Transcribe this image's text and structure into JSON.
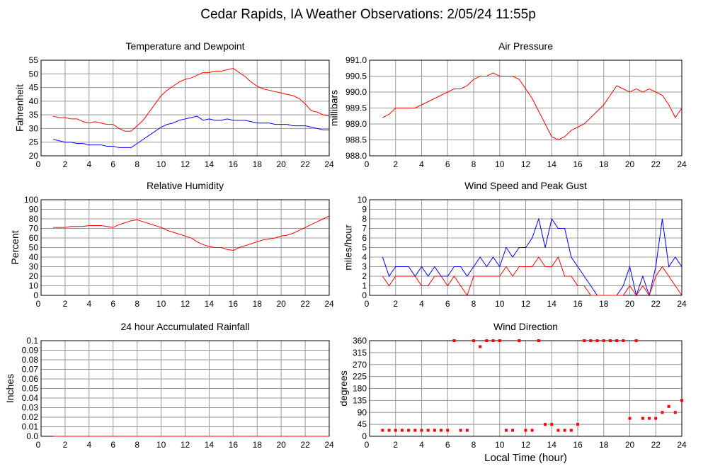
{
  "title": "Cedar Rapids, IA Weather Observations: 2/05/24 11:55p",
  "chart_data": [
    {
      "type": "line",
      "title": "Temperature and Dewpoint",
      "ylabel": "Fahrenheit",
      "grid": true,
      "x": [
        1,
        1.5,
        2,
        2.5,
        3,
        3.5,
        4,
        4.5,
        5,
        5.5,
        6,
        6.5,
        7,
        7.5,
        8,
        8.5,
        9,
        9.5,
        10,
        10.5,
        11,
        11.5,
        12,
        12.5,
        13,
        13.5,
        14,
        14.5,
        15,
        15.5,
        16,
        16.5,
        17,
        17.5,
        18,
        18.5,
        19,
        19.5,
        20,
        20.5,
        21,
        21.5,
        22,
        22.5,
        23,
        23.5,
        24
      ],
      "xlim": [
        0,
        24
      ],
      "xticks": [
        0,
        2,
        4,
        6,
        8,
        10,
        12,
        14,
        16,
        18,
        20,
        22,
        24
      ],
      "ylim": [
        20,
        55
      ],
      "yticks": [
        20,
        25,
        30,
        35,
        40,
        45,
        50,
        55
      ],
      "series": [
        {
          "color": "#ff0000",
          "values": [
            34.5,
            34,
            34,
            33.5,
            33.5,
            32.5,
            32,
            32.5,
            32,
            31.5,
            31.5,
            30,
            29,
            29,
            31,
            33,
            36,
            39,
            42,
            44,
            45.5,
            47,
            48,
            48.5,
            49.5,
            50.5,
            50.5,
            51,
            51,
            51.5,
            52,
            50.5,
            49,
            47,
            45.5,
            44.5,
            44,
            43.5,
            43,
            42.5,
            42,
            41,
            39,
            36.5,
            36,
            35,
            34.5
          ]
        },
        {
          "color": "#0000ff",
          "values": [
            26,
            25.5,
            25,
            25,
            24.5,
            24.5,
            24,
            24,
            24,
            23.5,
            23.5,
            23,
            23,
            23,
            24.5,
            26,
            27.5,
            29,
            30.5,
            31.5,
            32,
            33,
            33.5,
            34,
            34.5,
            33,
            33.5,
            33,
            33,
            33.5,
            33,
            33,
            33,
            32.5,
            32,
            32,
            32,
            31.5,
            31.5,
            31.5,
            31,
            31,
            31,
            30.5,
            30,
            29.5,
            29.5
          ]
        }
      ]
    },
    {
      "type": "line",
      "title": "Air Pressure",
      "ylabel": "millibars",
      "grid": true,
      "x": [
        1,
        1.5,
        2,
        2.5,
        3,
        3.5,
        4,
        4.5,
        5,
        5.5,
        6,
        6.5,
        7,
        7.5,
        8,
        8.5,
        9,
        9.5,
        10,
        10.5,
        11,
        11.5,
        12,
        12.5,
        13,
        13.5,
        14,
        14.5,
        15,
        15.5,
        16,
        16.5,
        17,
        17.5,
        18,
        18.5,
        19,
        19.5,
        20,
        20.5,
        21,
        21.5,
        22,
        22.5,
        23,
        23.5,
        24
      ],
      "xlim": [
        0,
        24
      ],
      "xticks": [
        0,
        2,
        4,
        6,
        8,
        10,
        12,
        14,
        16,
        18,
        20,
        22,
        24
      ],
      "ylim": [
        988,
        991
      ],
      "yticks": [
        {
          "value": 988,
          "label": "988.0"
        },
        988.5,
        {
          "value": 989,
          "label": "989.0"
        },
        989.5,
        {
          "value": 990,
          "label": "990.0"
        },
        990.5,
        {
          "value": 991,
          "label": "991.0"
        }
      ],
      "series": [
        {
          "color": "#ff0000",
          "values": [
            989.2,
            989.3,
            989.5,
            989.5,
            989.5,
            989.5,
            989.6,
            989.7,
            989.8,
            989.9,
            990,
            990.1,
            990.1,
            990.2,
            990.4,
            990.5,
            990.5,
            990.6,
            990.5,
            990.5,
            990.5,
            990.4,
            990.1,
            989.8,
            989.4,
            989,
            988.6,
            988.5,
            988.6,
            988.8,
            988.9,
            989,
            989.2,
            989.4,
            989.6,
            989.9,
            990.2,
            990.1,
            990,
            990.1,
            990,
            990.1,
            990,
            989.9,
            989.6,
            989.2,
            989.5
          ]
        }
      ]
    },
    {
      "type": "line",
      "title": "Relative Humidity",
      "ylabel": "Percent",
      "grid": true,
      "x": [
        1,
        1.5,
        2,
        2.5,
        3,
        3.5,
        4,
        4.5,
        5,
        5.5,
        6,
        6.5,
        7,
        7.5,
        8,
        8.5,
        9,
        9.5,
        10,
        10.5,
        11,
        11.5,
        12,
        12.5,
        13,
        13.5,
        14,
        14.5,
        15,
        15.5,
        16,
        16.5,
        17,
        17.5,
        18,
        18.5,
        19,
        19.5,
        20,
        20.5,
        21,
        21.5,
        22,
        22.5,
        23,
        23.5,
        24
      ],
      "xlim": [
        0,
        24
      ],
      "xticks": [
        0,
        2,
        4,
        6,
        8,
        10,
        12,
        14,
        16,
        18,
        20,
        22,
        24
      ],
      "ylim": [
        0,
        100
      ],
      "yticks": [
        0,
        10,
        20,
        30,
        40,
        50,
        60,
        70,
        80,
        90,
        100
      ],
      "series": [
        {
          "color": "#ff0000",
          "values": [
            71,
            71,
            71,
            72,
            72,
            72,
            73,
            73,
            73,
            72,
            71,
            74,
            76,
            78,
            79,
            77,
            75,
            73,
            71,
            68,
            66,
            64,
            62,
            60,
            56,
            53,
            51,
            50,
            50,
            48,
            47,
            50,
            52,
            54,
            56,
            58,
            59,
            60,
            62,
            63,
            65,
            68,
            71,
            74,
            77,
            80,
            83
          ]
        }
      ]
    },
    {
      "type": "line",
      "title": "Wind Speed and Peak Gust",
      "ylabel": "miles/hour",
      "grid": true,
      "x": [
        1,
        1.5,
        2,
        2.5,
        3,
        3.5,
        4,
        4.5,
        5,
        5.5,
        6,
        6.5,
        7,
        7.5,
        8,
        8.5,
        9,
        9.5,
        10,
        10.5,
        11,
        11.5,
        12,
        12.5,
        13,
        13.5,
        14,
        14.5,
        15,
        15.5,
        16,
        16.5,
        17,
        17.5,
        18,
        18.5,
        19,
        19.5,
        20,
        20.5,
        21,
        21.5,
        22,
        22.5,
        23,
        23.5,
        24
      ],
      "xlim": [
        0,
        24
      ],
      "xticks": [
        0,
        2,
        4,
        6,
        8,
        10,
        12,
        14,
        16,
        18,
        20,
        22,
        24
      ],
      "ylim": [
        0,
        10
      ],
      "yticks": [
        0,
        1,
        2,
        3,
        4,
        5,
        6,
        7,
        8,
        9,
        10
      ],
      "series": [
        {
          "color": "#0000ff",
          "values": [
            4,
            2,
            3,
            3,
            3,
            2,
            3,
            2,
            3,
            2,
            2,
            3,
            3,
            2,
            3,
            4,
            3,
            4,
            3,
            5,
            4,
            5,
            5,
            6,
            8,
            5,
            8,
            7,
            7,
            4,
            3,
            2,
            1,
            0,
            0,
            0,
            0,
            1,
            3,
            0,
            2,
            0,
            3,
            8,
            3,
            4,
            3
          ]
        },
        {
          "color": "#ff0000",
          "values": [
            2,
            1,
            2,
            2,
            2,
            2,
            1,
            1,
            2,
            2,
            1,
            2,
            1,
            0,
            2,
            2,
            2,
            2,
            2,
            3,
            2,
            3,
            3,
            3,
            4,
            3,
            3,
            4,
            2,
            2,
            1,
            1,
            0,
            0,
            0,
            0,
            0,
            0,
            1,
            0,
            1,
            0,
            2,
            3,
            2,
            1,
            0
          ]
        }
      ]
    },
    {
      "type": "line",
      "title": "24 hour Accumulated Rainfall",
      "ylabel": "Inches",
      "grid": true,
      "x": [
        1,
        24
      ],
      "xlim": [
        0,
        24
      ],
      "xticks": [
        0,
        2,
        4,
        6,
        8,
        10,
        12,
        14,
        16,
        18,
        20,
        22,
        24
      ],
      "ylim": [
        0,
        0.1
      ],
      "yticks": [
        {
          "value": 0,
          "label": "0.0"
        },
        0.01,
        0.02,
        0.03,
        0.04,
        0.05,
        0.06,
        0.07,
        0.08,
        0.09,
        0.1
      ],
      "series": [
        {
          "color": "#ff0000",
          "values": [
            0,
            0
          ]
        }
      ]
    },
    {
      "type": "scatter",
      "title": "Wind Direction",
      "ylabel": "degrees",
      "xlabel": "Local Time (hour)",
      "grid": true,
      "x": [
        1,
        1.5,
        2,
        2.5,
        3,
        3.5,
        4,
        4.5,
        5,
        5.5,
        6,
        6.5,
        7,
        7.5,
        8,
        8.5,
        9,
        9.5,
        10,
        10.5,
        11,
        11.5,
        12,
        12.5,
        13,
        13.5,
        14,
        14.5,
        15,
        15.5,
        16,
        16.5,
        17,
        17.5,
        18,
        18.5,
        19,
        19.5,
        20,
        20.5,
        21,
        21.5,
        22,
        22.5,
        23,
        23.5,
        24
      ],
      "xlim": [
        0,
        24
      ],
      "xticks": [
        0,
        2,
        4,
        6,
        8,
        10,
        12,
        14,
        16,
        18,
        20,
        22,
        24
      ],
      "ylim": [
        0,
        360
      ],
      "yticks": [
        0,
        45,
        90,
        135,
        180,
        225,
        270,
        315,
        360
      ],
      "series": [
        {
          "color": "#ff0000",
          "values": [
            22.5,
            22.5,
            22.5,
            22.5,
            22.5,
            22.5,
            22.5,
            22.5,
            22.5,
            22.5,
            22.5,
            360,
            22.5,
            22.5,
            360,
            337.5,
            360,
            360,
            360,
            22.5,
            22.5,
            360,
            22.5,
            22.5,
            360,
            45,
            45,
            22.5,
            22.5,
            22.5,
            45,
            360,
            360,
            360,
            360,
            360,
            360,
            360,
            67.5,
            360,
            67.5,
            67.5,
            67.5,
            90,
            112.5,
            90,
            135
          ]
        }
      ]
    }
  ]
}
